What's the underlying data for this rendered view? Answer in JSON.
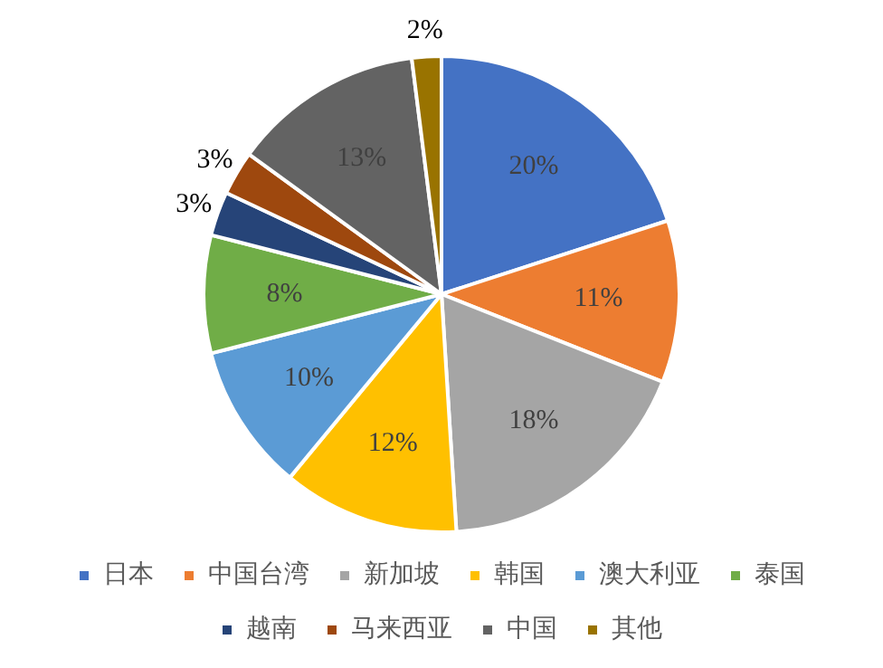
{
  "chart_data": {
    "type": "pie",
    "categories": [
      "日本",
      "中国台湾",
      "新加坡",
      "韩国",
      "澳大利亚",
      "泰国",
      "越南",
      "马来西亚",
      "中国",
      "其他"
    ],
    "values": [
      20,
      11,
      18,
      12,
      10,
      8,
      3,
      3,
      13,
      2
    ],
    "value_labels": [
      "20%",
      "11%",
      "18%",
      "12%",
      "10%",
      "8%",
      "3%",
      "3%",
      "13%",
      "2%"
    ],
    "colors": [
      "#4472c4",
      "#ed7d31",
      "#a5a5a5",
      "#ffc000",
      "#5b9bd5",
      "#70ad47",
      "#264478",
      "#9e480e",
      "#636363",
      "#997300"
    ],
    "legend": "bottom"
  }
}
